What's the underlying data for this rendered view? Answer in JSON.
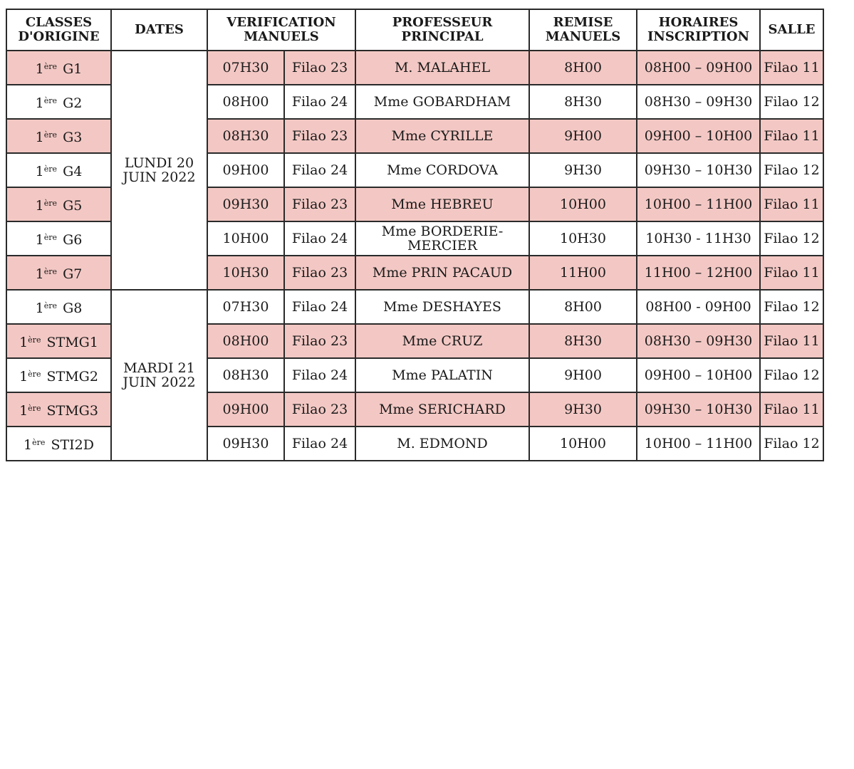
{
  "accent_color": "#f3c8c4",
  "headers": [
    "CLASSES D'ORIGINE",
    "DATES",
    "VERIFICATION MANUELS",
    "PROFESSEUR PRINCIPAL",
    "REMISE MANUELS",
    "HORAIRES INSCRIPTION",
    "SALLE"
  ],
  "dates": [
    "LUNDI 20 JUIN 2022",
    "MARDI 21 JUIN 2022"
  ],
  "rows": [
    {
      "prefix": "1",
      "sup": "ère",
      "cls": "G1",
      "time": "07H30",
      "room": "Filao 23",
      "prof": "M. MALAHEL",
      "remise": "8H00",
      "horaire": "08H00 – 09H00",
      "salle": "Filao 11",
      "shaded": true
    },
    {
      "prefix": "1",
      "sup": "ère",
      "cls": "G2",
      "time": "08H00",
      "room": "Filao 24",
      "prof": "Mme GOBARDHAM",
      "remise": "8H30",
      "horaire": "08H30 – 09H30",
      "salle": "Filao 12",
      "shaded": false
    },
    {
      "prefix": "1",
      "sup": "ère",
      "cls": "G3",
      "time": "08H30",
      "room": "Filao 23",
      "prof": "Mme CYRILLE",
      "remise": "9H00",
      "horaire": "09H00 – 10H00",
      "salle": "Filao 11",
      "shaded": true
    },
    {
      "prefix": "1",
      "sup": "ère",
      "cls": "G4",
      "time": "09H00",
      "room": "Filao 24",
      "prof": "Mme CORDOVA",
      "remise": "9H30",
      "horaire": "09H30 – 10H30",
      "salle": "Filao 12",
      "shaded": false
    },
    {
      "prefix": "1",
      "sup": "ère",
      "cls": "G5",
      "time": "09H30",
      "room": "Filao 23",
      "prof": "Mme HEBREU",
      "remise": "10H00",
      "horaire": "10H00 – 11H00",
      "salle": "Filao 11",
      "shaded": true
    },
    {
      "prefix": "1",
      "sup": "ère",
      "cls": "G6",
      "time": "10H00",
      "room": "Filao 24",
      "prof": "Mme BORDERIE-MERCIER",
      "remise": "10H30",
      "horaire": "10H30 - 11H30",
      "salle": "Filao 12",
      "shaded": false
    },
    {
      "prefix": "1",
      "sup": "ère",
      "cls": "G7",
      "time": "10H30",
      "room": "Filao 23",
      "prof": "Mme PRIN PACAUD",
      "remise": "11H00",
      "horaire": "11H00 – 12H00",
      "salle": "Filao 11",
      "shaded": true
    },
    {
      "prefix": "1",
      "sup": "ère",
      "cls": "G8",
      "time": "07H30",
      "room": "Filao 24",
      "prof": "Mme DESHAYES",
      "remise": "8H00",
      "horaire": "08H00 - 09H00",
      "salle": "Filao 12",
      "shaded": false
    },
    {
      "prefix": "1",
      "sup": "ère",
      "cls": "STMG1",
      "time": "08H00",
      "room": "Filao 23",
      "prof": "Mme CRUZ",
      "remise": "8H30",
      "horaire": "08H30 – 09H30",
      "salle": "Filao 11",
      "shaded": true
    },
    {
      "prefix": "1",
      "sup": "ère",
      "cls": "STMG2",
      "time": "08H30",
      "room": "Filao 24",
      "prof": "Mme PALATIN",
      "remise": "9H00",
      "horaire": "09H00 – 10H00",
      "salle": "Filao 12",
      "shaded": false
    },
    {
      "prefix": "1",
      "sup": "ère",
      "cls": "STMG3",
      "time": "09H00",
      "room": "Filao 23",
      "prof": "Mme SERICHARD",
      "remise": "9H30",
      "horaire": "09H30 – 10H30",
      "salle": "Filao 11",
      "shaded": true
    },
    {
      "prefix": "1",
      "sup": "ère",
      "cls": "STI2D",
      "time": "09H30",
      "room": "Filao 24",
      "prof": "M. EDMOND",
      "remise": "10H00",
      "horaire": "10H00 – 11H00",
      "salle": "Filao 12",
      "shaded": false
    }
  ]
}
